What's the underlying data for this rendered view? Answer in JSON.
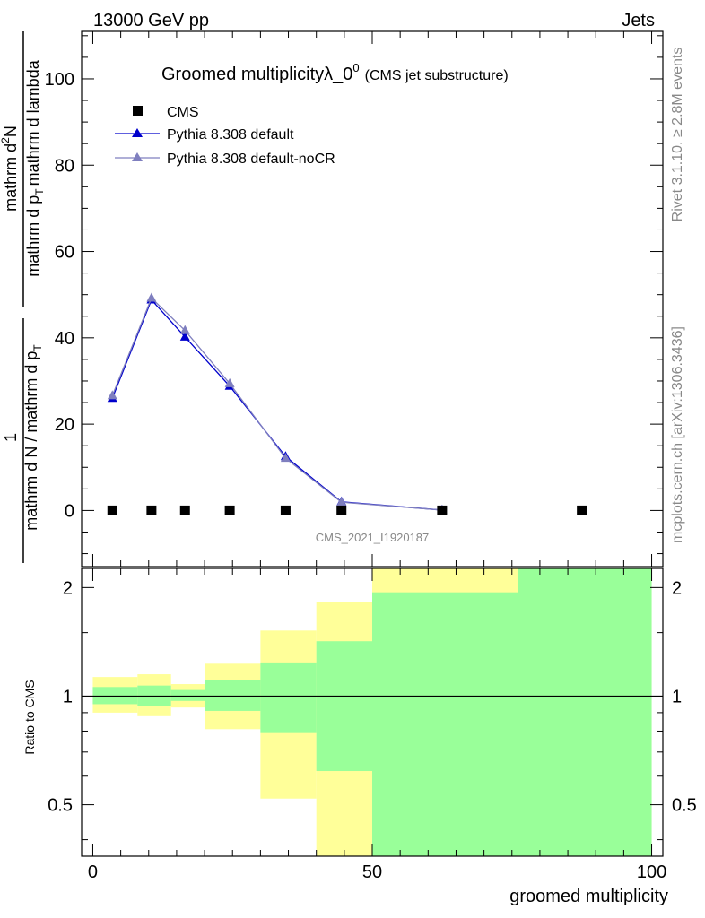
{
  "header": {
    "left": "13000 GeV pp",
    "right": "Jets"
  },
  "side": {
    "rivet": "Rivet 3.1.10, ≥ 2.8M events",
    "mcplots": "mcplots.cern.ch [arXiv:1306.3436]"
  },
  "colors": {
    "data": "#000000",
    "default": "#0000cc",
    "nocr": "#7f7fbf",
    "band_outer": "#ffff99",
    "band_inner": "#99ff99"
  },
  "chart_data": [
    {
      "type": "scatter",
      "title": "Groomed multiplicityλ_0",
      "title_sup": "0",
      "subtitle": "(CMS jet substructure)",
      "ylabel_top": "1",
      "ylabel_top_num": "mathrm d",
      "ylabel_top_sup": "2",
      "ylabel_top_tail": "N",
      "ylabel_bottom": "mathrm d N / mathrm d p",
      "ylabel_bottom_sub": "T",
      "ylabel_bottom_tail": "mathrm d lambda",
      "ylabel_frac_den": "mathrm d p",
      "ylabel_frac_den_sub": "T",
      "ylabel_frac_den_tail": "mathrm d lambda",
      "xlabel": "",
      "xlim": [
        -2,
        102
      ],
      "ylim": [
        -13,
        111
      ],
      "yticks": [
        0,
        20,
        40,
        60,
        80,
        100
      ],
      "watermark": "CMS_2021_I1920187",
      "legend": {
        "position": "top-left"
      },
      "series": [
        {
          "name": "CMS",
          "style": "square",
          "x": [
            3.5,
            10.5,
            16.5,
            24.5,
            34.5,
            44.5,
            62.5,
            87.5
          ],
          "y": [
            0,
            0,
            0,
            0,
            0,
            0,
            0,
            0
          ]
        },
        {
          "name": "Pythia 8.308 default",
          "style": "line-triangle",
          "x": [
            3.5,
            10.5,
            16.5,
            24.5,
            34.5,
            44.5,
            62.5
          ],
          "y": [
            26.0,
            48.8,
            40.2,
            28.8,
            12.5,
            2.0,
            0.1
          ]
        },
        {
          "name": "Pythia 8.308 default-noCR",
          "style": "line-triangle",
          "x": [
            3.5,
            10.5,
            16.5,
            24.5,
            34.5,
            44.5,
            62.5
          ],
          "y": [
            26.6,
            49.2,
            41.7,
            29.4,
            12.1,
            1.9,
            0.1
          ]
        }
      ]
    },
    {
      "type": "area",
      "title": "",
      "xlabel": "groomed multiplicity",
      "ylabel": "Ratio to CMS",
      "xlim": [
        -2,
        102
      ],
      "ylim": [
        0.36,
        2.26
      ],
      "yticks": [
        0.5,
        1,
        2
      ],
      "ytick_labels": [
        "0.5",
        "1",
        "2"
      ],
      "xticks": [
        0,
        50,
        100
      ],
      "xtick_labels": [
        "0",
        "50",
        "100"
      ],
      "reference_line": 1,
      "bins": [
        {
          "x0": 0,
          "x1": 8,
          "inner_lo": 0.95,
          "inner_hi": 1.06,
          "outer_lo": 0.9,
          "outer_hi": 1.13
        },
        {
          "x0": 8,
          "x1": 14,
          "inner_lo": 0.94,
          "inner_hi": 1.07,
          "outer_lo": 0.88,
          "outer_hi": 1.15
        },
        {
          "x0": 14,
          "x1": 20,
          "inner_lo": 0.97,
          "inner_hi": 1.04,
          "outer_lo": 0.93,
          "outer_hi": 1.08
        },
        {
          "x0": 20,
          "x1": 30,
          "inner_lo": 0.91,
          "inner_hi": 1.11,
          "outer_lo": 0.81,
          "outer_hi": 1.23
        },
        {
          "x0": 30,
          "x1": 40,
          "inner_lo": 0.79,
          "inner_hi": 1.24,
          "outer_lo": 0.52,
          "outer_hi": 1.52
        },
        {
          "x0": 40,
          "x1": 50,
          "inner_lo": 0.62,
          "inner_hi": 1.42,
          "outer_lo": 0.3,
          "outer_hi": 1.82
        },
        {
          "x0": 50,
          "x1": 76,
          "inner_lo": 0.3,
          "inner_hi": 1.94,
          "outer_lo": 0.2,
          "outer_hi": 3.0
        },
        {
          "x0": 76,
          "x1": 100,
          "inner_lo": 0.3,
          "inner_hi": 3.0,
          "outer_lo": 0.2,
          "outer_hi": 3.0
        }
      ]
    }
  ]
}
